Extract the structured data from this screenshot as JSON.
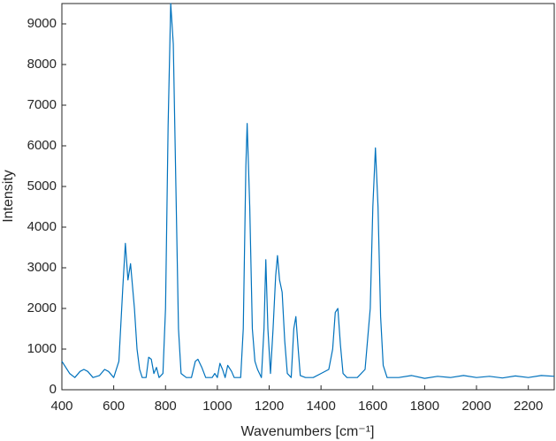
{
  "chart_data": {
    "type": "line",
    "x_label": "Wavenumbers [cm⁻¹]",
    "y_label": "Intensity",
    "x": [
      400,
      415,
      430,
      450,
      470,
      485,
      500,
      520,
      545,
      565,
      580,
      600,
      620,
      635,
      645,
      655,
      665,
      680,
      690,
      700,
      710,
      725,
      735,
      745,
      755,
      765,
      775,
      790,
      800,
      810,
      820,
      830,
      840,
      850,
      860,
      880,
      900,
      915,
      925,
      940,
      955,
      980,
      990,
      1000,
      1010,
      1020,
      1030,
      1040,
      1055,
      1065,
      1090,
      1100,
      1110,
      1115,
      1125,
      1135,
      1145,
      1155,
      1170,
      1180,
      1187,
      1195,
      1205,
      1215,
      1225,
      1232,
      1240,
      1250,
      1260,
      1270,
      1285,
      1295,
      1303,
      1312,
      1320,
      1340,
      1370,
      1400,
      1430,
      1445,
      1455,
      1465,
      1475,
      1485,
      1500,
      1540,
      1570,
      1590,
      1600,
      1610,
      1620,
      1630,
      1640,
      1655,
      1700,
      1750,
      1800,
      1850,
      1900,
      1950,
      2000,
      2050,
      2100,
      2150,
      2200,
      2250,
      2300
    ],
    "series": [
      {
        "color": "#0072bd",
        "values": [
          700,
          550,
          400,
          300,
          450,
          500,
          450,
          300,
          350,
          500,
          450,
          300,
          700,
          2500,
          3600,
          2700,
          3100,
          2000,
          1000,
          500,
          300,
          300,
          800,
          750,
          400,
          550,
          300,
          400,
          2000,
          6500,
          9500,
          8500,
          5000,
          1500,
          400,
          300,
          300,
          700,
          750,
          550,
          300,
          300,
          400,
          300,
          650,
          500,
          300,
          600,
          450,
          300,
          300,
          1500,
          5500,
          6550,
          4500,
          1500,
          700,
          500,
          300,
          1500,
          3200,
          1500,
          400,
          1500,
          2800,
          3300,
          2700,
          2400,
          1200,
          400,
          300,
          1500,
          1800,
          1000,
          350,
          300,
          300,
          400,
          500,
          1000,
          1900,
          2000,
          1100,
          400,
          300,
          300,
          500,
          2000,
          4500,
          5950,
          4500,
          1800,
          600,
          300,
          300,
          350,
          280,
          330,
          300,
          350,
          300,
          330,
          290,
          340,
          300,
          350,
          330
        ]
      }
    ],
    "xlim": [
      400,
      2300
    ],
    "ylim": [
      0,
      9500
    ],
    "xticks": [
      400,
      600,
      800,
      1000,
      1200,
      1400,
      1600,
      1800,
      2000,
      2200
    ],
    "yticks": [
      0,
      1000,
      2000,
      3000,
      4000,
      5000,
      6000,
      7000,
      8000,
      9000
    ]
  }
}
